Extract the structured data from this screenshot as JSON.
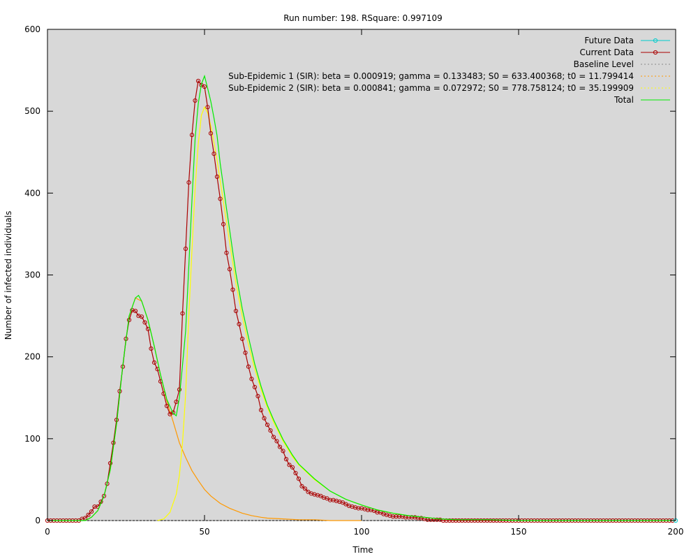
{
  "chart_data": {
    "type": "line",
    "title": "Run number: 198. RSquare: 0.997109",
    "xlabel": "Time",
    "ylabel": "Number of infected individuals",
    "xlim": [
      0,
      200
    ],
    "ylim": [
      0,
      600
    ],
    "xticks": [
      0,
      50,
      100,
      150,
      200
    ],
    "yticks": [
      0,
      100,
      200,
      300,
      400,
      500,
      600
    ],
    "grid": false,
    "background": "#d8d8d8",
    "legend_position": "top-right",
    "legend": [
      {
        "name": "Future Data",
        "color": "#00cccc",
        "style": "line-marker"
      },
      {
        "name": "Current Data",
        "color": "#aa0000",
        "style": "line-marker"
      },
      {
        "name": "Baseline Level",
        "color": "#888888",
        "style": "dotted"
      },
      {
        "name": "Sub-Epidemic 1 (SIR): beta = 0.000919; gamma = 0.133483; S0 = 633.400368; t0 = 11.799414",
        "color": "#ff9900",
        "style": "dotted"
      },
      {
        "name": "Sub-Epidemic 2 (SIR): beta = 0.000841; gamma = 0.072972; S0 = 778.758124; t0 = 35.199909",
        "color": "#ffff00",
        "style": "dotted"
      },
      {
        "name": "Total",
        "color": "#00ee00",
        "style": "line"
      }
    ],
    "series": [
      {
        "name": "Current Data",
        "color": "#aa0000",
        "x": [
          0,
          1,
          2,
          3,
          4,
          5,
          6,
          7,
          8,
          9,
          10,
          11,
          12,
          13,
          14,
          15,
          16,
          17,
          18,
          19,
          20,
          21,
          22,
          23,
          24,
          25,
          26,
          27,
          28,
          29,
          30,
          31,
          32,
          33,
          34,
          35,
          36,
          37,
          38,
          39,
          40,
          41,
          42,
          43,
          44,
          45,
          46,
          47,
          48,
          49,
          50,
          51,
          52,
          53,
          54,
          55,
          56,
          57,
          58,
          59,
          60,
          61,
          62,
          63,
          64,
          65,
          66,
          67,
          68,
          69,
          70,
          71,
          72,
          73,
          74,
          75,
          76,
          77,
          78,
          79,
          80,
          81,
          82,
          83,
          84,
          85,
          86,
          87,
          88,
          89,
          90,
          91,
          92,
          93,
          94,
          95,
          96,
          97,
          98,
          99,
          100,
          101,
          102,
          103,
          104,
          105,
          106,
          107,
          108,
          109,
          110,
          111,
          112,
          113,
          114,
          115,
          116,
          117,
          118,
          119,
          120,
          121,
          122,
          123,
          124,
          125,
          126,
          127,
          128,
          129,
          130,
          131,
          132,
          133,
          134,
          135,
          136,
          137,
          138,
          139,
          140,
          141,
          142,
          143,
          144,
          145,
          146,
          147,
          148,
          149,
          150,
          151,
          152,
          153,
          154,
          155,
          156,
          157,
          158,
          159,
          160,
          161,
          162,
          163,
          164,
          165,
          166,
          167,
          168,
          169,
          170,
          171,
          172,
          173,
          174,
          175,
          176,
          177,
          178,
          179,
          180,
          181,
          182,
          183,
          184,
          185,
          186,
          187,
          188,
          189,
          190,
          191,
          192,
          193,
          194,
          195,
          196,
          197,
          198,
          199
        ],
        "y": [
          0,
          0,
          0,
          0,
          0,
          0,
          0,
          0,
          0,
          0,
          0,
          2,
          3,
          7,
          11,
          17,
          17,
          23,
          30,
          45,
          70,
          95,
          123,
          158,
          188,
          222,
          245,
          257,
          256,
          250,
          249,
          242,
          234,
          210,
          193,
          185,
          170,
          155,
          140,
          130,
          132,
          145,
          160,
          253,
          332,
          413,
          471,
          513,
          537,
          532,
          530,
          505,
          473,
          448,
          420,
          393,
          362,
          327,
          307,
          282,
          256,
          240,
          222,
          205,
          188,
          173,
          163,
          152,
          135,
          125,
          117,
          110,
          102,
          97,
          90,
          85,
          75,
          68,
          65,
          58,
          51,
          42,
          39,
          35,
          33,
          32,
          31,
          30,
          28,
          27,
          25,
          25,
          24,
          23,
          22,
          20,
          18,
          17,
          16,
          15,
          15,
          14,
          13,
          13,
          12,
          10,
          10,
          8,
          7,
          6,
          5,
          5,
          5,
          5,
          4,
          4,
          4,
          4,
          3,
          3,
          2,
          1,
          1,
          1,
          1,
          1,
          0,
          0,
          0,
          0,
          0,
          0,
          0,
          0,
          0,
          0,
          0,
          0,
          0,
          0,
          0,
          0,
          0,
          0,
          0,
          0,
          0,
          0,
          0,
          0,
          0,
          0,
          0,
          0,
          0,
          0,
          0,
          0,
          0,
          0,
          0,
          0,
          0,
          0,
          0,
          0,
          0,
          0,
          0,
          0,
          0,
          0,
          0,
          0,
          0,
          0,
          0,
          0,
          0,
          0,
          0,
          0,
          0,
          0,
          0,
          0,
          0,
          0,
          0,
          0,
          0,
          0,
          0,
          0,
          0,
          0,
          0,
          0,
          0,
          0
        ]
      },
      {
        "name": "Future Data",
        "color": "#00cccc",
        "x": [
          200
        ],
        "y": [
          0
        ]
      },
      {
        "name": "Baseline Level",
        "color": "#888888",
        "x": [
          0,
          200
        ],
        "y": [
          0,
          0
        ]
      },
      {
        "name": "Sub-Epidemic 1 (SIR): beta = 0.000919; gamma = 0.133483; S0 = 633.400368; t0 = 11.799414",
        "color": "#ff9900",
        "x": [
          12,
          14,
          16,
          18,
          20,
          22,
          24,
          26,
          28,
          30,
          32,
          34,
          36,
          38,
          40,
          42,
          44,
          46,
          48,
          50,
          52,
          55,
          58,
          60,
          62,
          65,
          68,
          70,
          75,
          80,
          85,
          90,
          95,
          100
        ],
        "y": [
          0,
          4,
          12,
          30,
          62,
          118,
          190,
          250,
          272,
          268,
          245,
          213,
          178,
          146,
          121,
          95,
          77,
          61,
          49,
          38,
          30,
          21,
          15,
          12,
          9,
          6,
          4,
          3,
          2,
          1,
          1,
          0,
          0,
          0
        ]
      },
      {
        "name": "Sub-Epidemic 2 (SIR): beta = 0.000841; gamma = 0.072972; S0 = 778.758124; t0 = 35.199909",
        "color": "#ffff00",
        "x": [
          35,
          37,
          39,
          41,
          42,
          43,
          44,
          45,
          46,
          47,
          48,
          49,
          50,
          51,
          52,
          53,
          54,
          55,
          56,
          57,
          58,
          59,
          60,
          62,
          64,
          66,
          68,
          70,
          72,
          75,
          78,
          80,
          85,
          90,
          95,
          100,
          105,
          110,
          115,
          120,
          125,
          130
        ],
        "y": [
          0,
          2,
          10,
          32,
          55,
          95,
          155,
          250,
          330,
          405,
          460,
          495,
          505,
          498,
          482,
          462,
          440,
          415,
          390,
          365,
          340,
          315,
          290,
          250,
          215,
          185,
          160,
          138,
          120,
          97,
          78,
          68,
          50,
          36,
          26,
          19,
          13,
          9,
          6,
          4,
          2,
          1
        ]
      },
      {
        "name": "Total",
        "color": "#00ee00",
        "x": [
          0,
          10,
          12,
          14,
          16,
          18,
          20,
          22,
          24,
          26,
          28,
          29,
          30,
          32,
          34,
          36,
          38,
          40,
          41,
          42,
          43,
          44,
          45,
          46,
          47,
          48,
          49,
          50,
          51,
          52,
          53,
          54,
          55,
          56,
          57,
          58,
          59,
          60,
          62,
          64,
          66,
          68,
          70,
          72,
          75,
          78,
          80,
          85,
          90,
          95,
          100,
          105,
          110,
          115,
          120,
          125,
          130,
          140,
          150,
          160,
          170,
          180,
          190,
          200
        ],
        "y": [
          0,
          0,
          0,
          4,
          12,
          30,
          62,
          118,
          190,
          250,
          272,
          275,
          268,
          245,
          213,
          178,
          148,
          131,
          128,
          150,
          190,
          232,
          311,
          391,
          466,
          509,
          533,
          543,
          528,
          512,
          492,
          470,
          436,
          409,
          381,
          355,
          328,
          302,
          259,
          224,
          191,
          164,
          141,
          123,
          99,
          80,
          69,
          51,
          36,
          26,
          19,
          13,
          9,
          6,
          4,
          2,
          1,
          1,
          0,
          0,
          0,
          0,
          0,
          0
        ]
      }
    ]
  }
}
